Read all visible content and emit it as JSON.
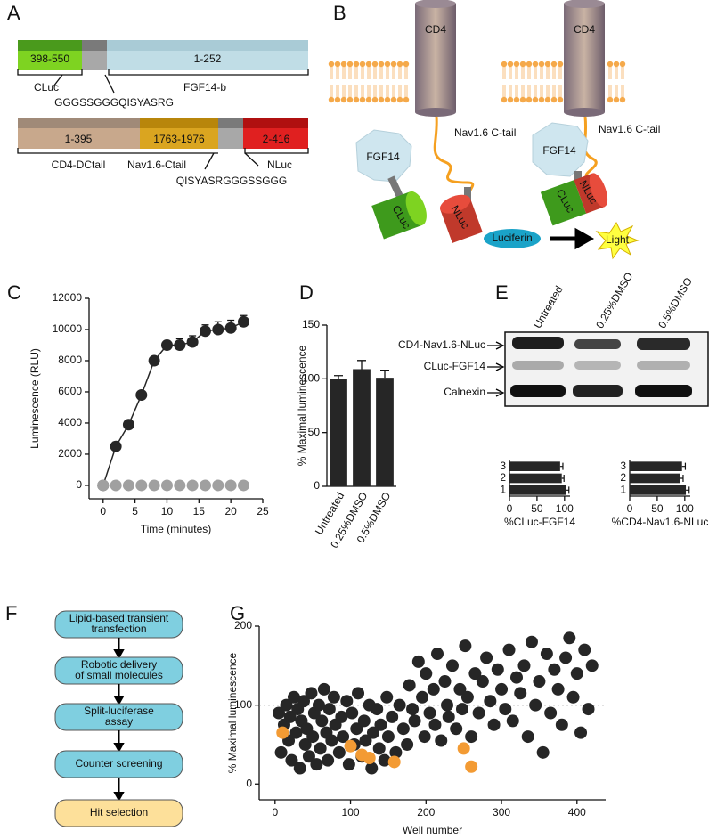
{
  "panel_labels": [
    "A",
    "B",
    "C",
    "D",
    "E",
    "F",
    "G"
  ],
  "panel_a": {
    "segments": [
      "398-550",
      "1-252",
      "1-395",
      "1763-1976",
      "2-416"
    ],
    "names": [
      "CLuc",
      "FGF14-b",
      "CD4-DCtail",
      "Nav1.6-Ctail",
      "NLuc"
    ],
    "linkers": [
      "GGGSSGGGQISYASRG",
      "QISYASRGGGSSGGG"
    ]
  },
  "panel_b": {
    "cd4": [
      "CD4",
      "CD4"
    ],
    "tail": [
      "Nav1.6 C-tail",
      "Nav1.6 C-tail"
    ],
    "fgf": [
      "FGF14",
      "FGF14"
    ],
    "cluc": [
      "CLuc",
      "CLuc"
    ],
    "nluc": [
      "NLuc",
      "NLuc"
    ],
    "substrate": "Luciferin",
    "product": "Light"
  },
  "panel_e": {
    "columns": [
      "Untreated",
      "0.25%DMSO",
      "0.5%DMSO"
    ],
    "rows": [
      "CD4-Nav1.6-NLuc",
      "CLuc-FGF14",
      "Calnexin"
    ]
  },
  "panel_f": {
    "steps": [
      [
        "Lipid-based transient",
        "transfection"
      ],
      [
        "Robotic delivery",
        "of small molecules"
      ],
      [
        "Split-luciferase",
        "assay"
      ],
      [
        "Counter screening"
      ],
      [
        "Hit selection"
      ]
    ]
  },
  "chart_data": [
    {
      "type": "line",
      "x_label": "Time (minutes)",
      "y_label": "Luminescence (RLU)",
      "x": [
        0,
        2,
        4,
        6,
        8,
        10,
        12,
        14,
        16,
        18,
        20,
        22
      ],
      "xlim": [
        -2.2,
        25
      ],
      "xticks": [
        0,
        5,
        10,
        15,
        20,
        25
      ],
      "ylim": [
        -860,
        12000
      ],
      "yticks": [
        0,
        2000,
        4000,
        6000,
        8000,
        10000,
        12000
      ],
      "series": [
        {
          "color": "#262626",
          "line": true,
          "values": [
            0,
            2500,
            3900,
            5800,
            8000,
            9000,
            9000,
            9200,
            9900,
            10000,
            10100,
            10500
          ],
          "errors": [
            0,
            0,
            0,
            0,
            0,
            200,
            400,
            400,
            400,
            500,
            500,
            400
          ]
        },
        {
          "color": "#a0a0a0",
          "line": false,
          "values": [
            0,
            0,
            0,
            0,
            0,
            0,
            0,
            0,
            0,
            0,
            0,
            0
          ]
        }
      ]
    },
    {
      "type": "bar",
      "y_label": "% Maximal luminescence",
      "categories": [
        "Untreated",
        "0.25%DMSO",
        "0.5%DMSO"
      ],
      "values": [
        100,
        109,
        101
      ],
      "errors": [
        3,
        8,
        7
      ],
      "color": "#262626",
      "ylim": [
        0,
        150
      ],
      "yticks": [
        0,
        50,
        100,
        150
      ]
    },
    {
      "type": "barh",
      "x_label": "%CLuc-FGF14",
      "categories": [
        "3",
        "2",
        "1"
      ],
      "values": [
        92,
        95,
        102
      ],
      "errors": [
        5,
        4,
        6
      ],
      "color": "#262626",
      "xlim": [
        0,
        110
      ],
      "xticks": [
        0,
        50,
        100
      ]
    },
    {
      "type": "barh",
      "x_label": "%CD4-Nav1.6-NLuc",
      "categories": [
        "3",
        "2",
        "1"
      ],
      "values": [
        95,
        92,
        102
      ],
      "errors": [
        6,
        5,
        6
      ],
      "color": "#262626",
      "xlim": [
        0,
        110
      ],
      "xticks": [
        0,
        50,
        100
      ]
    },
    {
      "type": "scatter",
      "x_label": "Well number",
      "y_label": "% Maximal luminescence",
      "xlim": [
        -21,
        438
      ],
      "xticks": [
        0,
        100,
        200,
        300,
        400
      ],
      "ylim": [
        -20,
        200
      ],
      "yticks": [
        0,
        100,
        200
      ],
      "reference_line": 100,
      "series": [
        {
          "color": "#262626",
          "x": [
            5,
            8,
            12,
            15,
            18,
            20,
            22,
            25,
            28,
            30,
            33,
            35,
            38,
            40,
            42,
            45,
            48,
            50,
            52,
            55,
            58,
            60,
            62,
            65,
            68,
            70,
            72,
            75,
            78,
            80,
            85,
            88,
            90,
            95,
            98,
            102,
            105,
            108,
            110,
            115,
            118,
            120,
            125,
            128,
            130,
            135,
            138,
            140,
            145,
            148,
            150,
            155,
            160,
            165,
            170,
            175,
            178,
            182,
            185,
            190,
            195,
            198,
            200,
            205,
            210,
            212,
            215,
            220,
            225,
            228,
            230,
            235,
            240,
            245,
            248,
            252,
            255,
            260,
            265,
            270,
            275,
            280,
            285,
            290,
            295,
            300,
            305,
            310,
            315,
            320,
            325,
            330,
            335,
            340,
            345,
            350,
            355,
            360,
            365,
            370,
            375,
            380,
            385,
            390,
            395,
            400,
            405,
            410,
            415,
            420
          ],
          "values": [
            90,
            40,
            75,
            100,
            55,
            85,
            30,
            110,
            65,
            95,
            20,
            80,
            105,
            50,
            70,
            35,
            115,
            60,
            90,
            25,
            100,
            45,
            80,
            120,
            65,
            30,
            95,
            55,
            110,
            75,
            40,
            85,
            60,
            105,
            25,
            90,
            50,
            70,
            115,
            35,
            80,
            55,
            100,
            20,
            65,
            95,
            45,
            75,
            30,
            110,
            60,
            85,
            40,
            100,
            70,
            50,
            125,
            95,
            80,
            155,
            110,
            60,
            140,
            90,
            120,
            75,
            165,
            55,
            130,
            100,
            85,
            150,
            70,
            120,
            95,
            175,
            110,
            60,
            140,
            90,
            130,
            160,
            105,
            75,
            145,
            120,
            95,
            170,
            80,
            135,
            115,
            150,
            60,
            180,
            100,
            130,
            40,
            165,
            90,
            145,
            120,
            75,
            160,
            185,
            110,
            140,
            65,
            170,
            95,
            150
          ]
        },
        {
          "color": "#f39b34",
          "x": [
            10,
            100,
            115,
            125,
            158,
            250,
            260
          ],
          "values": [
            65,
            48,
            37,
            33,
            28,
            45,
            22
          ]
        }
      ]
    }
  ]
}
